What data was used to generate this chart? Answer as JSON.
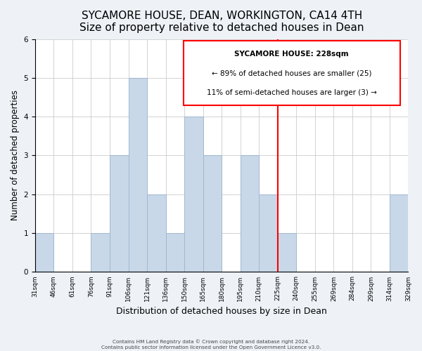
{
  "title": "SYCAMORE HOUSE, DEAN, WORKINGTON, CA14 4TH",
  "subtitle": "Size of property relative to detached houses in Dean",
  "xlabel": "Distribution of detached houses by size in Dean",
  "ylabel": "Number of detached properties",
  "bin_labels": [
    "31sqm",
    "46sqm",
    "61sqm",
    "76sqm",
    "91sqm",
    "106sqm",
    "121sqm",
    "136sqm",
    "150sqm",
    "165sqm",
    "180sqm",
    "195sqm",
    "210sqm",
    "225sqm",
    "240sqm",
    "255sqm",
    "269sqm",
    "284sqm",
    "299sqm",
    "314sqm",
    "329sqm"
  ],
  "bar_values": [
    1,
    0,
    0,
    1,
    3,
    5,
    2,
    1,
    4,
    3,
    0,
    3,
    2,
    1,
    0,
    0,
    0,
    0,
    0,
    2
  ],
  "bar_color": "#c8d8e8",
  "bar_edge_color": "#a0b8d0",
  "red_line_index": 13,
  "annotation_line1": "SYCAMORE HOUSE: 228sqm",
  "annotation_line2": "← 89% of detached houses are smaller (25)",
  "annotation_line3": "11% of semi-detached houses are larger (3) →",
  "footnote1": "Contains HM Land Registry data © Crown copyright and database right 2024.",
  "footnote2": "Contains public sector information licensed under the Open Government Licence v3.0.",
  "ylim": [
    0,
    6
  ],
  "yticks": [
    0,
    1,
    2,
    3,
    4,
    5,
    6
  ],
  "background_color": "#eef2f7",
  "plot_background": "#ffffff",
  "title_fontsize": 11,
  "xlabel_fontsize": 9,
  "ylabel_fontsize": 8.5
}
